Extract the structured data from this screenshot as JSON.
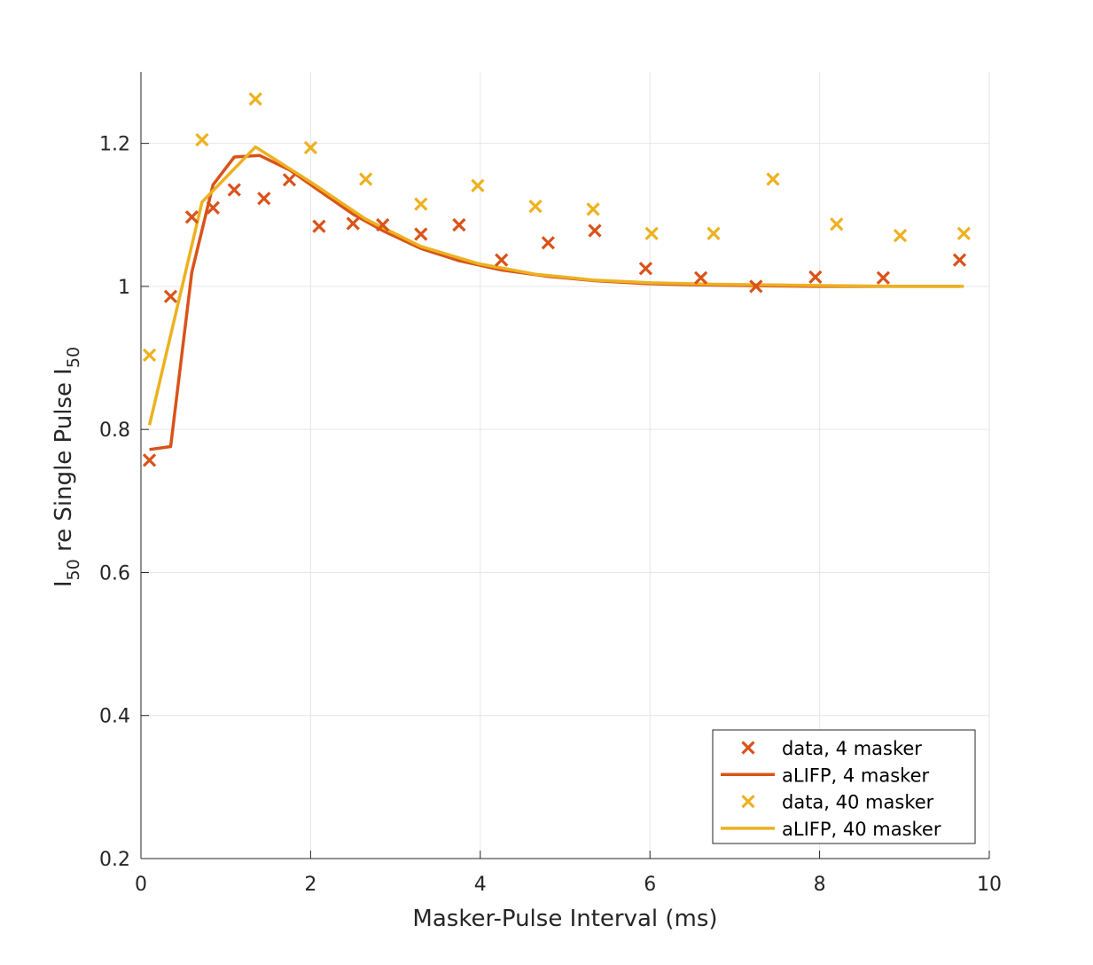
{
  "chart_data": {
    "type": "line",
    "xlabel": "Masker-Pulse Interval (ms)",
    "ylabel_parts": [
      "I",
      "50",
      " re Single Pulse I",
      "50"
    ],
    "xlim": [
      0,
      10
    ],
    "ylim": [
      0.2,
      1.3
    ],
    "xticks": [
      0,
      2,
      4,
      6,
      8,
      10
    ],
    "xtick_labels": [
      "0",
      "2",
      "4",
      "6",
      "8",
      "10"
    ],
    "yticks": [
      0.2,
      0.4,
      0.6,
      0.8,
      1.0,
      1.2
    ],
    "ytick_labels": [
      "0.2",
      "0.4",
      "0.6",
      "0.8",
      "1",
      "1.2"
    ],
    "grid": true,
    "legend_position": "bottom-right",
    "series": [
      {
        "name": "data, 4 masker",
        "kind": "scatter",
        "marker": "x",
        "color": "#D95319",
        "x": [
          0.1,
          0.35,
          0.6,
          0.85,
          1.1,
          1.45,
          1.75,
          2.1,
          2.5,
          2.85,
          3.3,
          3.75,
          4.25,
          4.8,
          5.35,
          5.95,
          6.6,
          7.25,
          7.95,
          8.75,
          9.65
        ],
        "y": [
          0.757,
          0.986,
          1.097,
          1.11,
          1.135,
          1.123,
          1.149,
          1.084,
          1.088,
          1.086,
          1.073,
          1.086,
          1.037,
          1.061,
          1.078,
          1.025,
          1.012,
          1.0,
          1.013,
          1.012,
          1.037
        ]
      },
      {
        "name": "aLIFP, 4 masker",
        "kind": "line",
        "color": "#D95319",
        "x": [
          0.1,
          0.35,
          0.6,
          0.85,
          1.1,
          1.4,
          1.75,
          2.1,
          2.5,
          2.85,
          3.3,
          3.75,
          4.25,
          4.8,
          5.35,
          5.95,
          6.6,
          7.25,
          7.95,
          8.75,
          9.65
        ],
        "y": [
          0.772,
          0.776,
          1.02,
          1.142,
          1.181,
          1.183,
          1.163,
          1.134,
          1.101,
          1.078,
          1.053,
          1.036,
          1.023,
          1.014,
          1.008,
          1.004,
          1.002,
          1.001,
          1.0,
          1.0,
          1.0
        ]
      },
      {
        "name": "data, 40 masker",
        "kind": "scatter",
        "marker": "x",
        "color": "#EDB120",
        "x": [
          0.1,
          0.72,
          1.35,
          2.0,
          2.65,
          3.3,
          3.97,
          4.65,
          5.33,
          6.02,
          6.75,
          7.45,
          8.2,
          8.95,
          9.7
        ],
        "y": [
          0.904,
          1.205,
          1.262,
          1.194,
          1.15,
          1.115,
          1.141,
          1.112,
          1.108,
          1.074,
          1.074,
          1.15,
          1.087,
          1.071,
          1.074
        ]
      },
      {
        "name": "aLIFP, 40 masker",
        "kind": "line",
        "color": "#EDB120",
        "x": [
          0.1,
          0.72,
          1.35,
          2.0,
          2.65,
          3.3,
          3.97,
          4.65,
          5.33,
          6.02,
          6.75,
          7.45,
          8.2,
          8.95,
          9.7
        ],
        "y": [
          0.806,
          1.118,
          1.195,
          1.146,
          1.094,
          1.056,
          1.032,
          1.017,
          1.009,
          1.005,
          1.003,
          1.002,
          1.001,
          1.0,
          1.0
        ]
      }
    ]
  }
}
